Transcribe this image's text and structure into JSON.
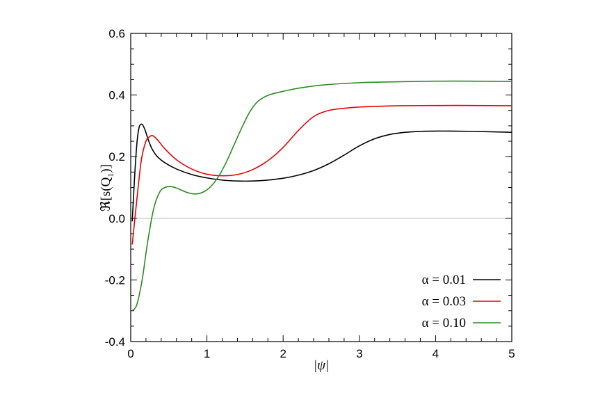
{
  "chart_data": {
    "type": "line",
    "title": "",
    "xlabel": "|ψ|",
    "ylabel_main": "ℜ[s(Q",
    "ylabel_sub": "1",
    "ylabel_end": ")]",
    "xlim": [
      0,
      5
    ],
    "ylim": [
      -0.4,
      0.6
    ],
    "xticks": [
      0,
      1,
      2,
      3,
      4,
      5
    ],
    "xtick_labels": [
      "0",
      "1",
      "2",
      "3",
      "4",
      "5"
    ],
    "yticks": [
      -0.4,
      -0.2,
      0.0,
      0.2,
      0.4,
      0.6
    ],
    "ytick_labels": [
      "-0.4",
      "-0.2",
      "0.0",
      "0.2",
      "0.4",
      "0.6"
    ],
    "zero_line": true,
    "grid": false,
    "legend_position": "bottom-right",
    "series": [
      {
        "name": "α = 0.01",
        "color": "#000000",
        "x": [
          0.02,
          0.05,
          0.08,
          0.11,
          0.15,
          0.19,
          0.23,
          0.28,
          0.35,
          0.45,
          0.6,
          0.8,
          1.0,
          1.2,
          1.4,
          1.6,
          1.8,
          2.0,
          2.2,
          2.4,
          2.6,
          2.8,
          3.0,
          3.2,
          3.4,
          3.6,
          3.8,
          4.0,
          4.2,
          4.5,
          5.0
        ],
        "y": [
          -0.01,
          0.13,
          0.24,
          0.295,
          0.305,
          0.285,
          0.255,
          0.225,
          0.2,
          0.18,
          0.16,
          0.142,
          0.131,
          0.124,
          0.121,
          0.121,
          0.124,
          0.13,
          0.14,
          0.155,
          0.177,
          0.205,
          0.235,
          0.258,
          0.272,
          0.279,
          0.282,
          0.283,
          0.283,
          0.282,
          0.279
        ]
      },
      {
        "name": "α = 0.03",
        "color": "#e60000",
        "x": [
          0.02,
          0.08,
          0.14,
          0.2,
          0.25,
          0.29,
          0.35,
          0.45,
          0.6,
          0.8,
          1.0,
          1.2,
          1.4,
          1.6,
          1.8,
          2.0,
          2.2,
          2.4,
          2.6,
          2.8,
          3.0,
          3.2,
          3.5,
          4.0,
          4.5,
          5.0
        ],
        "y": [
          -0.085,
          0.06,
          0.19,
          0.25,
          0.265,
          0.268,
          0.255,
          0.225,
          0.19,
          0.16,
          0.143,
          0.138,
          0.142,
          0.158,
          0.187,
          0.23,
          0.285,
          0.33,
          0.35,
          0.357,
          0.361,
          0.363,
          0.365,
          0.366,
          0.366,
          0.365
        ]
      },
      {
        "name": "α = 0.10",
        "color": "#2a8a1e",
        "x": [
          0.02,
          0.08,
          0.15,
          0.22,
          0.3,
          0.38,
          0.45,
          0.52,
          0.58,
          0.65,
          0.75,
          0.85,
          0.95,
          1.05,
          1.15,
          1.25,
          1.35,
          1.45,
          1.55,
          1.65,
          1.75,
          1.85,
          2.0,
          2.2,
          2.5,
          3.0,
          3.5,
          4.0,
          4.5,
          5.0
        ],
        "y": [
          -0.3,
          -0.28,
          -0.2,
          -0.08,
          0.03,
          0.085,
          0.1,
          0.103,
          0.1,
          0.093,
          0.083,
          0.079,
          0.085,
          0.103,
          0.135,
          0.18,
          0.235,
          0.29,
          0.34,
          0.375,
          0.393,
          0.403,
          0.412,
          0.422,
          0.432,
          0.44,
          0.443,
          0.445,
          0.445,
          0.444
        ]
      }
    ]
  }
}
